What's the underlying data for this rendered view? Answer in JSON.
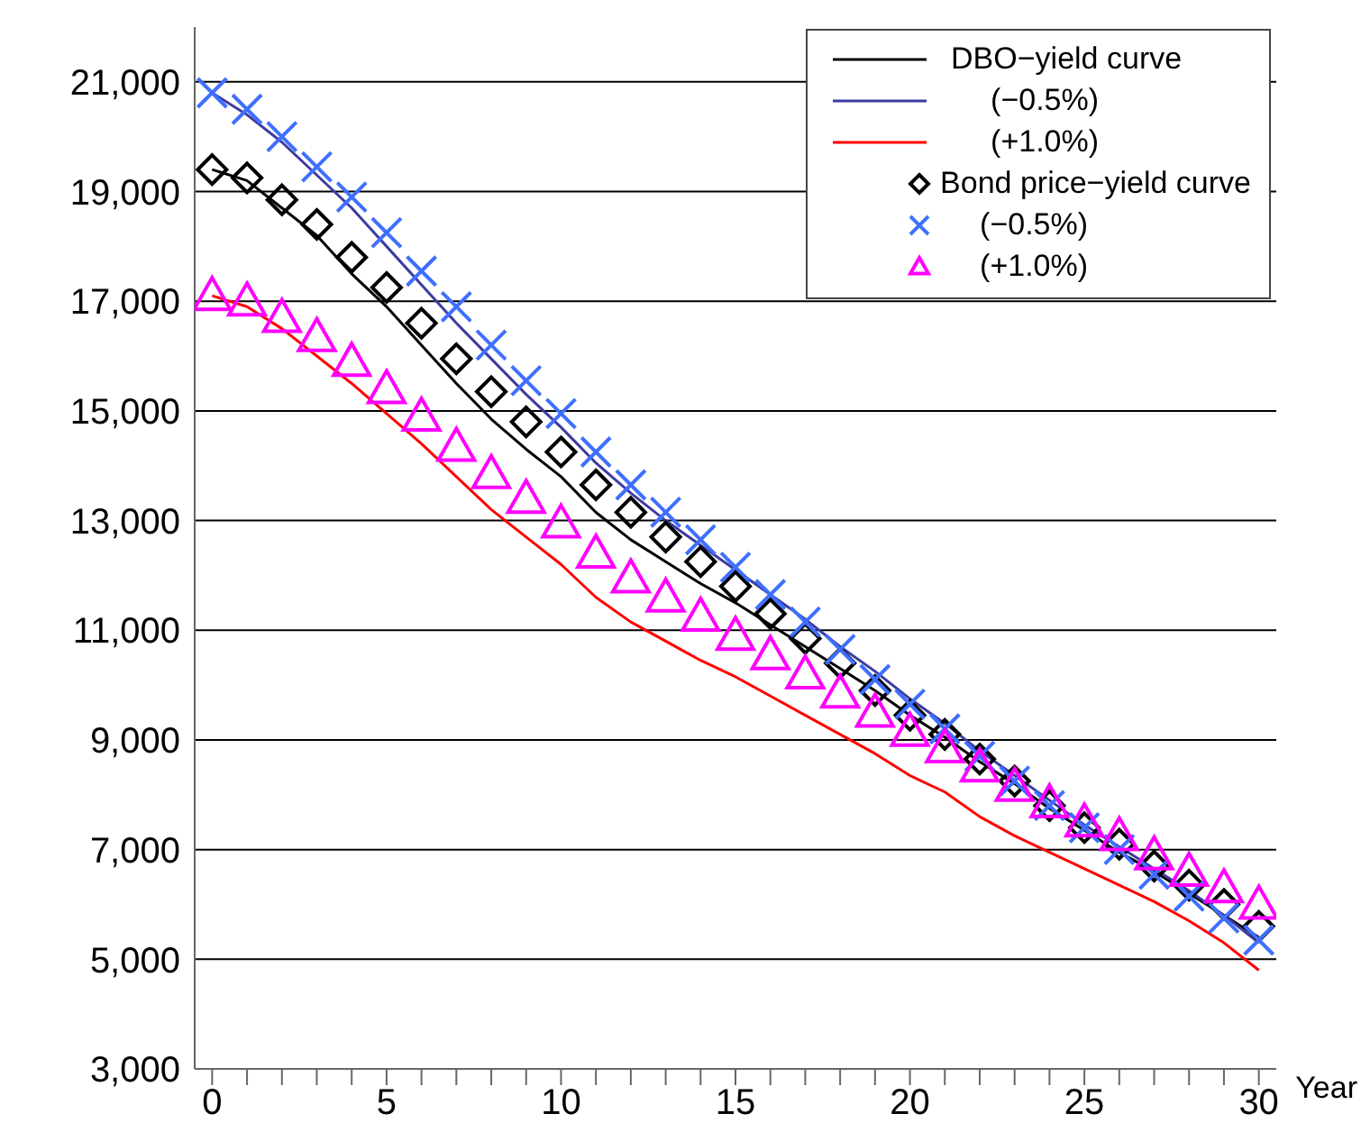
{
  "chart_data": {
    "type": "line",
    "xlabel": "Year",
    "x": [
      0,
      1,
      2,
      3,
      4,
      5,
      6,
      7,
      8,
      9,
      10,
      11,
      12,
      13,
      14,
      15,
      16,
      17,
      18,
      19,
      20,
      21,
      22,
      23,
      24,
      25,
      26,
      27,
      28,
      29,
      30
    ],
    "series": [
      {
        "name": "DBO−yield curve",
        "color": "#000000",
        "marker": "none",
        "values": [
          19400,
          19200,
          18700,
          18200,
          17500,
          16900,
          16200,
          15500,
          14850,
          14300,
          13800,
          13150,
          12650,
          12250,
          11850,
          11500,
          11100,
          10700,
          10300,
          9900,
          9450,
          9050,
          8600,
          8200,
          7750,
          7350,
          6950,
          6600,
          6200,
          5800,
          5400
        ]
      },
      {
        "name": "(−0.5%)",
        "color": "#3c3ca0",
        "marker": "none",
        "values": [
          20800,
          20400,
          19900,
          19300,
          18700,
          18000,
          17300,
          16600,
          15950,
          15300,
          14700,
          14050,
          13500,
          13000,
          12550,
          12100,
          11650,
          11200,
          10700,
          10250,
          9750,
          9300,
          8800,
          8350,
          7900,
          7450,
          7050,
          6650,
          6250,
          5800,
          5300
        ]
      },
      {
        "name": "(+1.0%)",
        "color": "#ff0000",
        "marker": "none",
        "values": [
          17100,
          16900,
          16500,
          16000,
          15500,
          14950,
          14400,
          13800,
          13200,
          12700,
          12200,
          11600,
          11150,
          10800,
          10450,
          10150,
          9800,
          9450,
          9100,
          8750,
          8350,
          8050,
          7600,
          7250,
          6950,
          6650,
          6350,
          6050,
          5700,
          5300,
          4800
        ]
      },
      {
        "name": "Bond price−yield curve",
        "type": "scatter",
        "color": "#000000",
        "marker": "diamond",
        "values": [
          19400,
          19250,
          18850,
          18400,
          17800,
          17250,
          16600,
          15950,
          15350,
          14800,
          14250,
          13650,
          13150,
          12700,
          12250,
          11800,
          11300,
          10850,
          10400,
          9900,
          9450,
          9100,
          8650,
          8250,
          7800,
          7400,
          7100,
          6700,
          6350,
          6000,
          5600
        ]
      },
      {
        "name": "(−0.5%)",
        "type": "scatter",
        "color": "#3f6fff",
        "marker": "cross",
        "values": [
          20800,
          20500,
          20000,
          19450,
          18900,
          18250,
          17550,
          16900,
          16200,
          15550,
          14950,
          14250,
          13650,
          13150,
          12650,
          12150,
          11650,
          11150,
          10650,
          10100,
          9650,
          9200,
          8700,
          8250,
          7800,
          7400,
          7000,
          6550,
          6150,
          5750,
          5350
        ]
      },
      {
        "name": "(+1.0%)",
        "type": "scatter",
        "color": "#ff00ff",
        "marker": "triangle",
        "values": [
          17100,
          17000,
          16700,
          16350,
          15900,
          15400,
          14900,
          14350,
          13850,
          13400,
          12950,
          12400,
          11950,
          11600,
          11250,
          10900,
          10550,
          10200,
          9850,
          9500,
          9150,
          8850,
          8500,
          8150,
          7850,
          7500,
          7250,
          6900,
          6600,
          6300,
          6000
        ]
      }
    ],
    "xlim": [
      -0.5,
      30.5
    ],
    "xticks": [
      0,
      {
        "value": 1,
        "label": null
      },
      {
        "value": 2,
        "label": null
      },
      {
        "value": 3,
        "label": null
      },
      {
        "value": 4,
        "label": null
      },
      5,
      {
        "value": 6,
        "label": null
      },
      {
        "value": 7,
        "label": null
      },
      {
        "value": 8,
        "label": null
      },
      {
        "value": 9,
        "label": null
      },
      10,
      {
        "value": 11,
        "label": null
      },
      {
        "value": 12,
        "label": null
      },
      {
        "value": 13,
        "label": null
      },
      {
        "value": 14,
        "label": null
      },
      15,
      {
        "value": 16,
        "label": null
      },
      {
        "value": 17,
        "label": null
      },
      {
        "value": 18,
        "label": null
      },
      {
        "value": 19,
        "label": null
      },
      20,
      {
        "value": 21,
        "label": null
      },
      {
        "value": 22,
        "label": null
      },
      {
        "value": 23,
        "label": null
      },
      {
        "value": 24,
        "label": null
      },
      25,
      {
        "value": 26,
        "label": null
      },
      {
        "value": 27,
        "label": null
      },
      {
        "value": 28,
        "label": null
      },
      {
        "value": 29,
        "label": null
      },
      30
    ],
    "ylim": [
      3000,
      22000
    ],
    "yticks": [
      {
        "value": 3000,
        "label": "3,000"
      },
      {
        "value": 5000,
        "label": "5,000"
      },
      {
        "value": 7000,
        "label": "7,000"
      },
      {
        "value": 9000,
        "label": "9,000"
      },
      {
        "value": 11000,
        "label": "11,000"
      },
      {
        "value": 13000,
        "label": "13,000"
      },
      {
        "value": 15000,
        "label": "15,000"
      },
      {
        "value": 17000,
        "label": "17,000"
      },
      {
        "value": 19000,
        "label": "19,000"
      },
      {
        "value": 21000,
        "label": "21,000"
      }
    ],
    "grid": "y",
    "legend": "top right"
  }
}
